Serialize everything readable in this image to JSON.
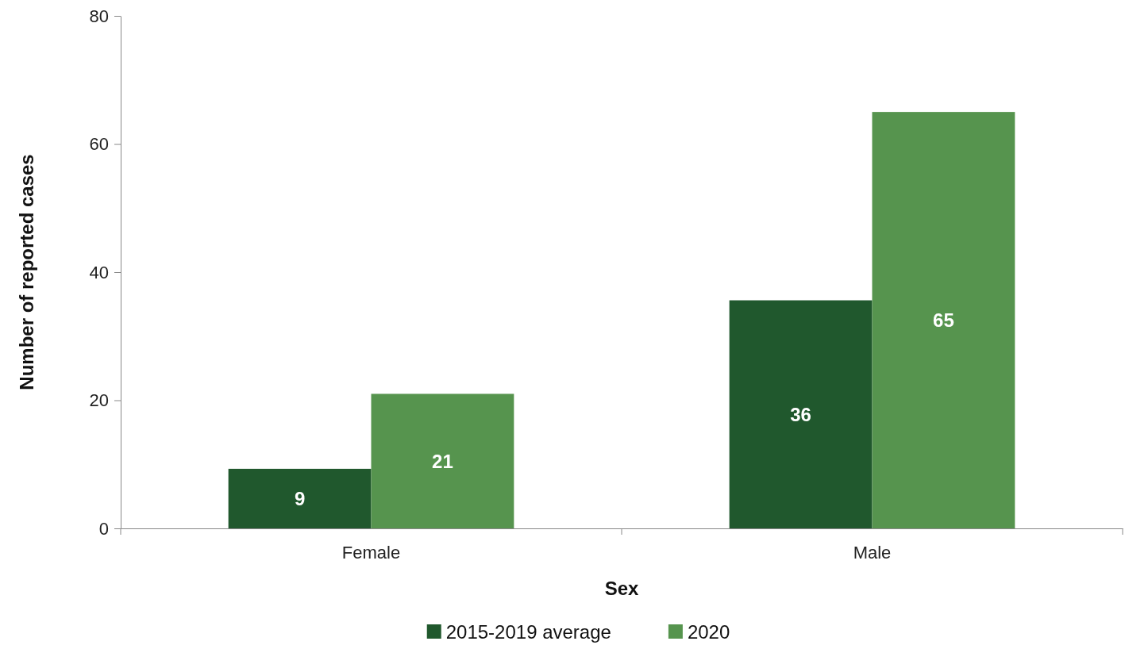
{
  "chart_data": {
    "type": "bar",
    "xlabel": "Sex",
    "ylabel": "Number of reported cases",
    "categories": [
      "Female",
      "Male"
    ],
    "series": [
      {
        "name": "2015-2019 average",
        "color": "#20582d",
        "values": [
          9.3,
          35.6
        ],
        "value_labels": [
          "9",
          "36"
        ]
      },
      {
        "name": "2020",
        "color": "#56944e",
        "values": [
          21,
          65
        ],
        "value_labels": [
          "21",
          "65"
        ]
      }
    ],
    "ylim": [
      0,
      80
    ],
    "yticks": [
      0,
      20,
      40,
      60,
      80
    ],
    "legend": "bottom"
  }
}
